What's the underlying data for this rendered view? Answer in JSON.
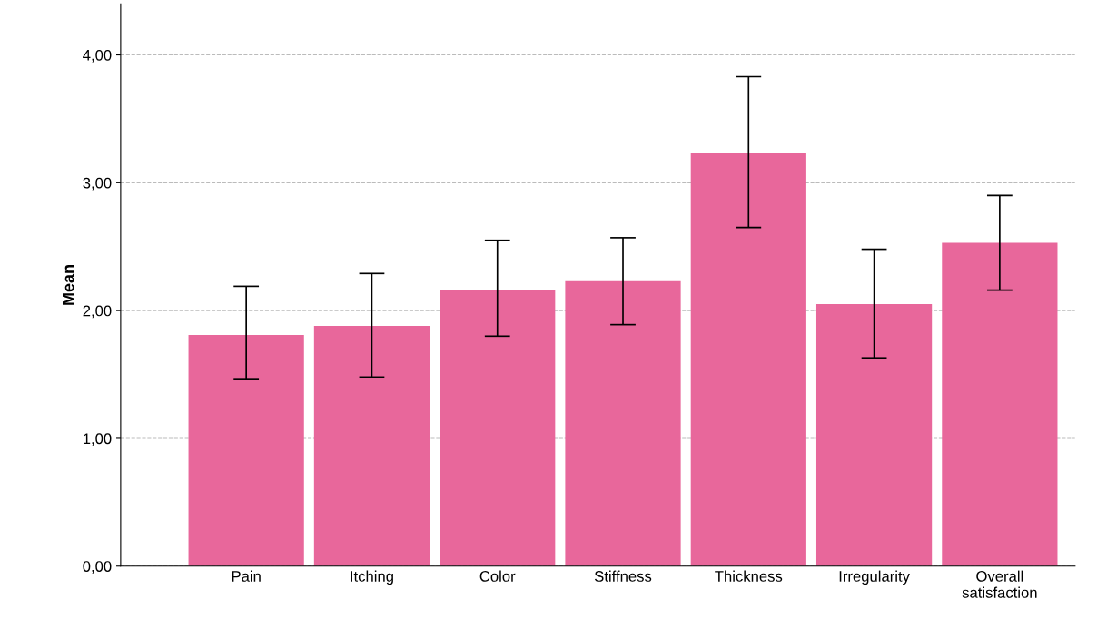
{
  "chart_data": {
    "type": "bar",
    "ylabel": "Mean",
    "categories": [
      "Pain",
      "Itching",
      "Color",
      "Stiffness",
      "Thickness",
      "Irregularity",
      "Overall\nsatisfaction"
    ],
    "values": [
      1.81,
      1.88,
      2.16,
      2.23,
      3.23,
      2.05,
      2.53
    ],
    "errors": [
      [
        1.46,
        2.19
      ],
      [
        1.48,
        2.29
      ],
      [
        1.8,
        2.55
      ],
      [
        1.89,
        2.57
      ],
      [
        2.65,
        3.83
      ],
      [
        1.63,
        2.48
      ],
      [
        2.16,
        2.9
      ]
    ],
    "color": "#e8679b",
    "ylim": [
      0,
      4.4
    ],
    "yticks": [
      {
        "value": 0,
        "label": "0,00"
      },
      {
        "value": 1,
        "label": "1,00"
      },
      {
        "value": 2,
        "label": "2,00"
      },
      {
        "value": 3,
        "label": "3,00"
      },
      {
        "value": 4,
        "label": "4,00"
      }
    ],
    "grid": "y"
  }
}
